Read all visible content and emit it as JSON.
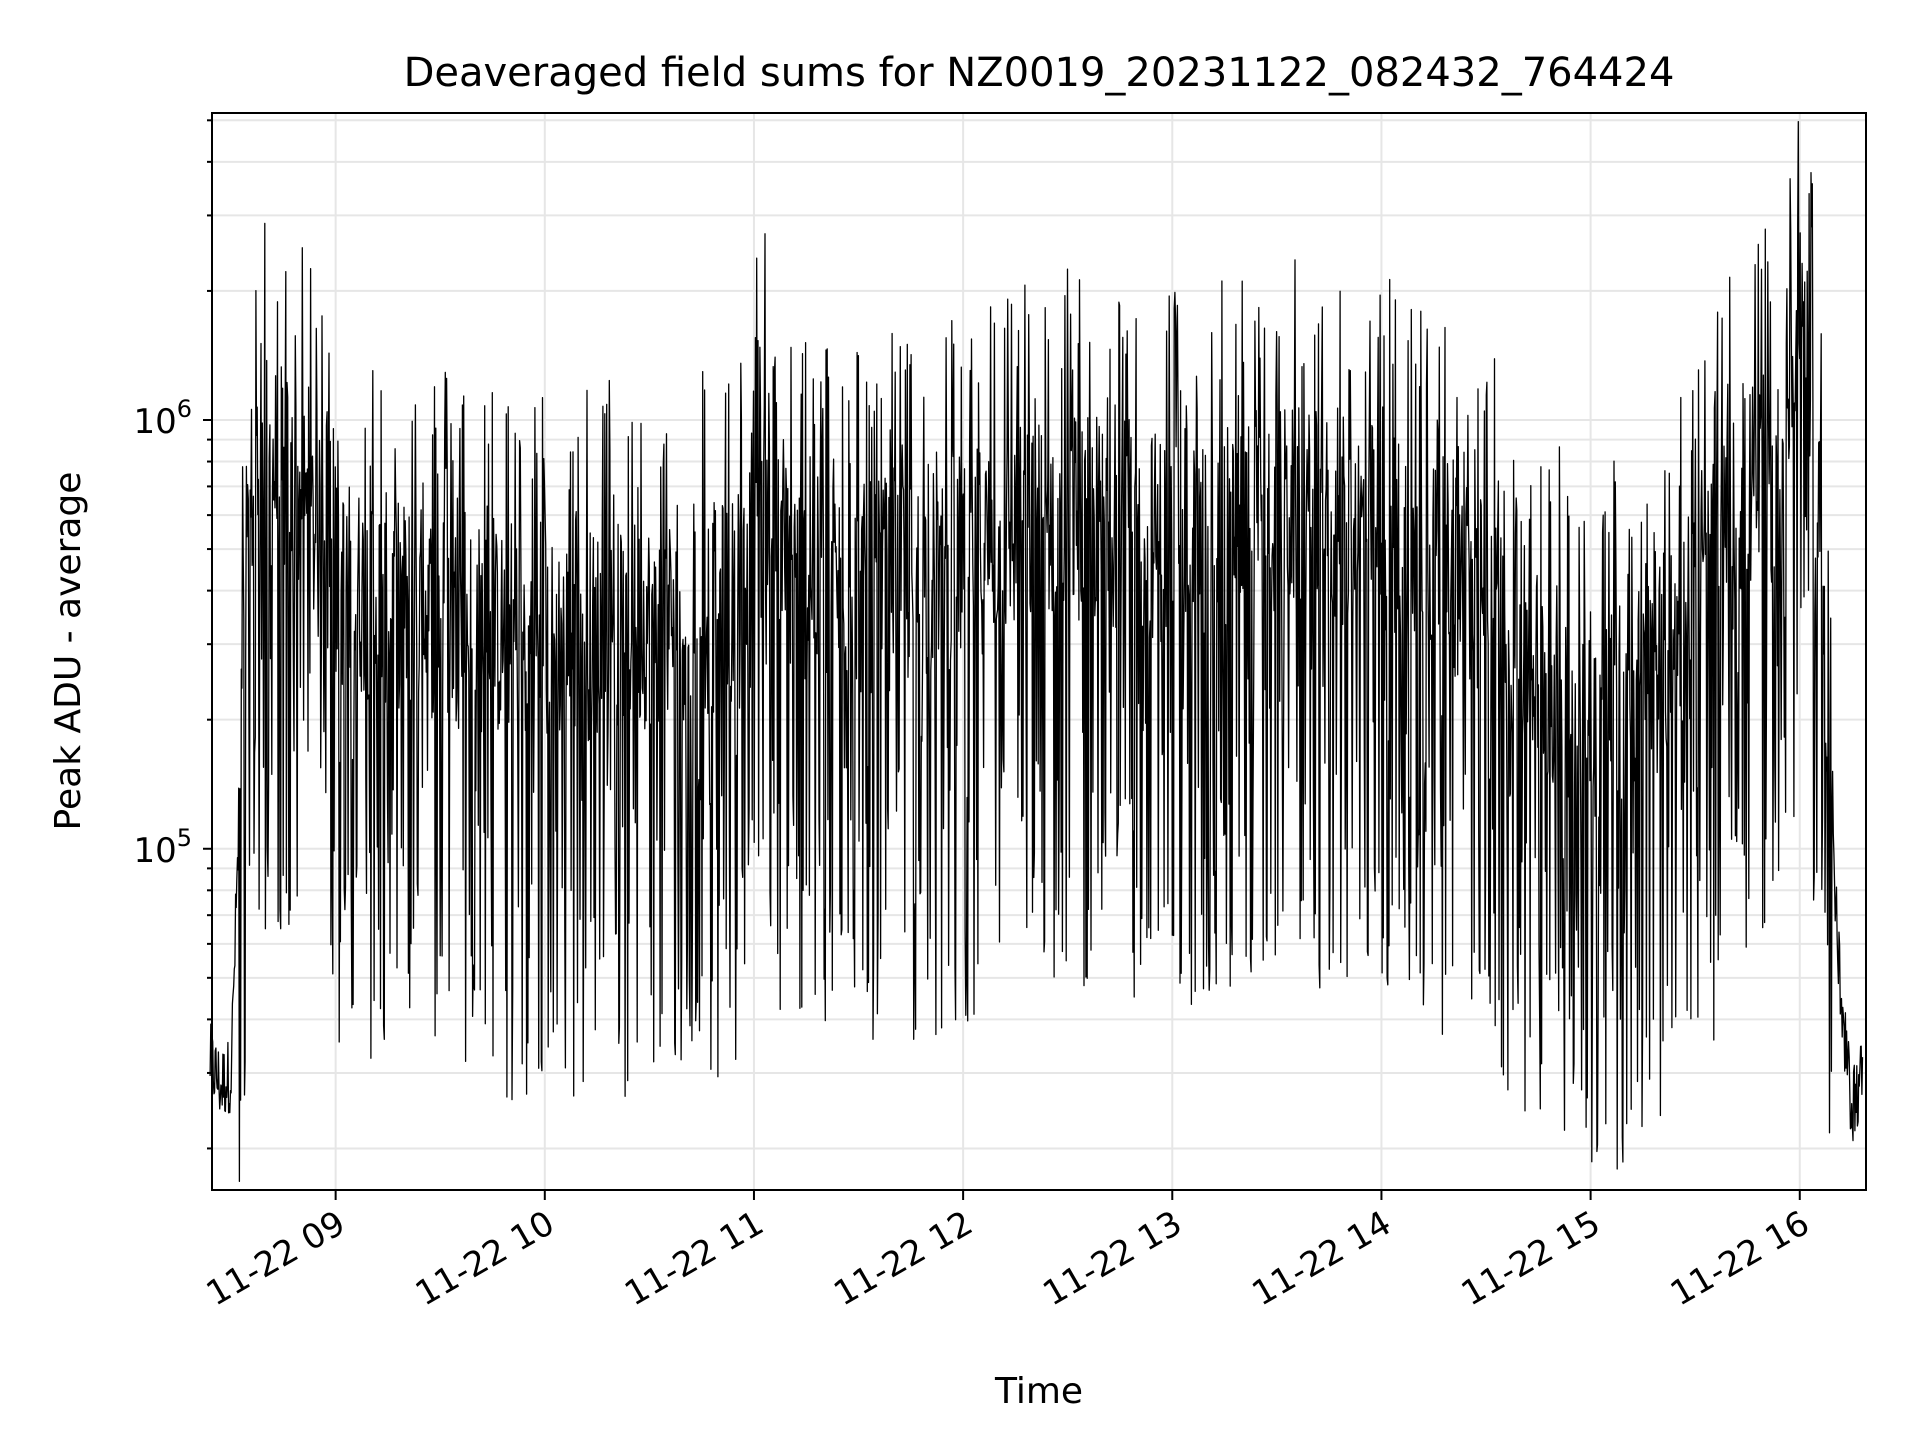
{
  "chart_data": {
    "type": "line",
    "title": "Deaveraged field sums for NZ0019_20231122_082432_764424",
    "xlabel": "Time",
    "ylabel": "Peak ADU - average",
    "x_scale": "time",
    "y_scale": "log",
    "xlim": [
      "2023-11-22 08:24:32",
      "2023-11-22 16:19:00"
    ],
    "ylim": [
      16000,
      5200000
    ],
    "x_ticks": [
      "2023-11-22 09:00",
      "2023-11-22 10:00",
      "2023-11-22 11:00",
      "2023-11-22 12:00",
      "2023-11-22 13:00",
      "2023-11-22 14:00",
      "2023-11-22 15:00",
      "2023-11-22 16:00"
    ],
    "x_tick_labels": [
      "11-22 09",
      "11-22 10",
      "11-22 11",
      "11-22 12",
      "11-22 13",
      "11-22 14",
      "11-22 15",
      "11-22 16"
    ],
    "y_ticks": [
      100000,
      1000000
    ],
    "y_tick_labels": [
      "10^5",
      "10^6"
    ],
    "grid": true,
    "legend": "none",
    "line_color": "#000000",
    "grid_color": "#e6e6e6",
    "series": [
      {
        "x": [
          "2023-11-22 08:24",
          "2023-11-22 08:27",
          "2023-11-22 08:30",
          "2023-11-22 08:33",
          "2023-11-22 08:36",
          "2023-11-22 08:40",
          "2023-11-22 08:45",
          "2023-11-22 08:50",
          "2023-11-22 09:00",
          "2023-11-22 09:15",
          "2023-11-22 09:30",
          "2023-11-22 09:45",
          "2023-11-22 10:00",
          "2023-11-22 10:15",
          "2023-11-22 10:30",
          "2023-11-22 10:45",
          "2023-11-22 10:58",
          "2023-11-22 11:00",
          "2023-11-22 11:05",
          "2023-11-22 11:15",
          "2023-11-22 11:30",
          "2023-11-22 11:45",
          "2023-11-22 12:00",
          "2023-11-22 12:15",
          "2023-11-22 12:30",
          "2023-11-22 12:45",
          "2023-11-22 13:00",
          "2023-11-22 13:15",
          "2023-11-22 13:30",
          "2023-11-22 13:45",
          "2023-11-22 14:00",
          "2023-11-22 14:15",
          "2023-11-22 14:30",
          "2023-11-22 14:45",
          "2023-11-22 15:00",
          "2023-11-22 15:15",
          "2023-11-22 15:30",
          "2023-11-22 15:45",
          "2023-11-22 15:55",
          "2023-11-22 16:00",
          "2023-11-22 16:03",
          "2023-11-22 16:06",
          "2023-11-22 16:09",
          "2023-11-22 16:12",
          "2023-11-22 16:15",
          "2023-11-22 16:18"
        ],
        "y": [
          32000,
          28000,
          30000,
          180000,
          700000,
          800000,
          750000,
          650000,
          420000,
          380000,
          350000,
          320000,
          300000,
          320000,
          340000,
          360000,
          380000,
          1200000,
          500000,
          420000,
          400000,
          420000,
          480000,
          550000,
          600000,
          580000,
          520000,
          560000,
          620000,
          580000,
          560000,
          480000,
          380000,
          260000,
          200000,
          240000,
          350000,
          700000,
          700000,
          2200000,
          1000000,
          600000,
          120000,
          40000,
          25000,
          30000
        ]
      }
    ]
  }
}
